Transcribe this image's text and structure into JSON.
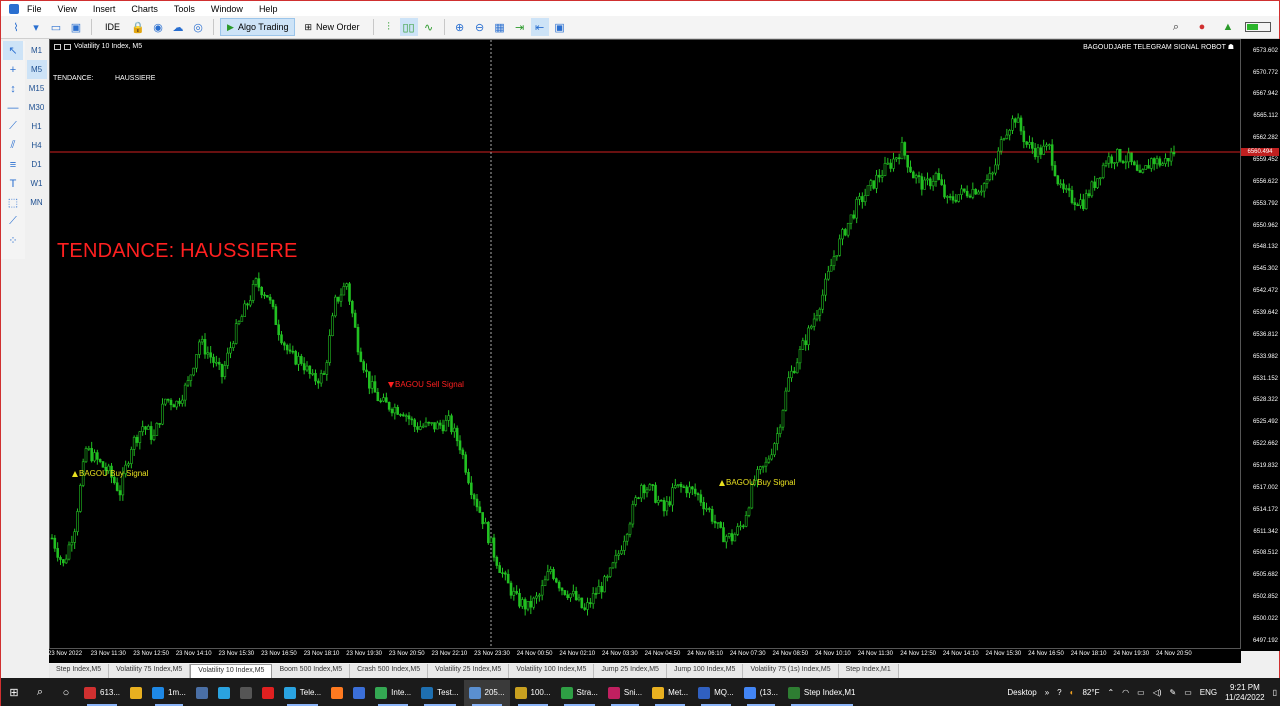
{
  "menu": [
    "File",
    "View",
    "Insert",
    "Charts",
    "Tools",
    "Window",
    "Help"
  ],
  "toolbar": {
    "ide_label": "IDE",
    "algo_trading_label": "Algo Trading",
    "new_order_label": "New Order"
  },
  "timeframes": [
    "M1",
    "M5",
    "M15",
    "M30",
    "H1",
    "H4",
    "D1",
    "W1",
    "MN"
  ],
  "active_timeframe": "M5",
  "chart": {
    "title": "Volatility 10 Index, M5",
    "robot_label": "BAGOUDJARE TELEGRAM SIGNAL ROBOT",
    "tendance_label": "TENDANCE:",
    "tendance_value": "HAUSSIERE",
    "tendance_big": "TENDANCE: HAUSSIERE",
    "buy_signal_1": "BAGOU Buy Signal",
    "sell_signal": "BAGOU Sell Signal",
    "buy_signal_2": "BAGOU Buy Signal",
    "current_price": "6560.494",
    "candle_color": "#22c022",
    "price_line_color": "#d02020"
  },
  "chart_data": {
    "type": "line",
    "title": "Volatility 10 Index, M5",
    "xlabel": "",
    "ylabel": "",
    "ylim": [
      6496,
      6575
    ],
    "y_ticks": [
      "6573.602",
      "6570.772",
      "6567.942",
      "6565.112",
      "6562.282",
      "6559.452",
      "6556.622",
      "6553.792",
      "6550.962",
      "6548.132",
      "6545.302",
      "6542.472",
      "6539.642",
      "6536.812",
      "6533.982",
      "6531.152",
      "6528.322",
      "6525.492",
      "6522.662",
      "6519.832",
      "6517.002",
      "6514.172",
      "6511.342",
      "6508.512",
      "6505.682",
      "6502.852",
      "6500.022",
      "6497.192"
    ],
    "x_ticks": [
      "23 Nov 2022",
      "23 Nov 11:30",
      "23 Nov 12:50",
      "23 Nov 14:10",
      "23 Nov 15:30",
      "23 Nov 16:50",
      "23 Nov 18:10",
      "23 Nov 19:30",
      "23 Nov 20:50",
      "23 Nov 22:10",
      "23 Nov 23:30",
      "24 Nov 00:50",
      "24 Nov 02:10",
      "24 Nov 03:30",
      "24 Nov 04:50",
      "24 Nov 06:10",
      "24 Nov 07:30",
      "24 Nov 08:50",
      "24 Nov 10:10",
      "24 Nov 11:30",
      "24 Nov 12:50",
      "24 Nov 14:10",
      "24 Nov 15:30",
      "24 Nov 16:50",
      "24 Nov 18:10",
      "24 Nov 19:30",
      "24 Nov 20:50"
    ],
    "series": [
      {
        "values": [
          6510.5,
          6507.0,
          6512.0,
          6522.0,
          6520.5,
          6519.0,
          6516.5,
          6522.5,
          6525.0,
          6523.5,
          6528.5,
          6528.0,
          6530.5,
          6536.0,
          6534.0,
          6531.5,
          6536.5,
          6540.0,
          6543.5,
          6542.0,
          6537.5,
          6534.0,
          6533.5,
          6531.0,
          6531.5,
          6541.0,
          6543.5,
          6535.5,
          6530.5,
          6528.0,
          6527.5,
          6527.0,
          6525.0,
          6525.0,
          6525.0,
          6525.5,
          6522.5,
          6517.0,
          6513.0,
          6508.5,
          6505.0,
          6502.5,
          6501.5,
          6503.0,
          6506.5,
          6504.0,
          6503.0,
          6501.0,
          6503.5,
          6505.0,
          6508.5,
          6513.0,
          6517.5,
          6516.5,
          6514.0,
          6517.0,
          6517.0,
          6516.0,
          6514.0,
          6511.0,
          6510.5,
          6512.5,
          6518.0,
          6520.0,
          6524.0,
          6531.0,
          6534.5,
          6538.0,
          6542.0,
          6547.0,
          6550.5,
          6553.5,
          6555.5,
          6557.5,
          6559.0,
          6561.0,
          6557.5,
          6556.0,
          6557.5,
          6554.0,
          6555.0,
          6555.5,
          6556.0,
          6557.5,
          6563.0,
          6565.0,
          6561.5,
          6560.5,
          6561.0,
          6555.5,
          6554.5,
          6554.0,
          6556.5,
          6559.5,
          6560.0,
          6559.5,
          6557.0,
          6559.5,
          6559.0,
          6560.5
        ]
      }
    ]
  },
  "symbol_tabs": [
    "Step Index,M5",
    "Volatility 75 Index,M5",
    "Volatility 10 Index,M5",
    "Boom 500 Index,M5",
    "Crash 500 Index,M5",
    "Volatility 25 Index,M5",
    "Volatility 100 Index,M5",
    "Jump 25 Index,M5",
    "Jump 100 Index,M5",
    "Volatility 75 (1s) Index,M5",
    "Step Index,M1"
  ],
  "active_tab": "Volatility 10 Index,M5",
  "taskbar": {
    "apps": [
      {
        "label": "613...",
        "color": "#d03030"
      },
      {
        "label": "",
        "color": "#e8b020"
      },
      {
        "label": "1m...",
        "color": "#1e88e5"
      },
      {
        "label": "",
        "color": "#4a6fa5"
      },
      {
        "label": "",
        "color": "#2aa3e0"
      },
      {
        "label": "",
        "color": "#555555"
      },
      {
        "label": "",
        "color": "#e02020"
      },
      {
        "label": "Tele...",
        "color": "#2aa3e0"
      },
      {
        "label": "",
        "color": "#ff7a20"
      },
      {
        "label": "",
        "color": "#3b6fd8"
      },
      {
        "label": "Inte...",
        "color": "#34a853"
      },
      {
        "label": "Test...",
        "color": "#1e6fb0"
      },
      {
        "label": "205...",
        "color": "#5a8fd0"
      },
      {
        "label": "100...",
        "color": "#c8a020"
      },
      {
        "label": "Stra...",
        "color": "#2e9e44"
      },
      {
        "label": "Sni...",
        "color": "#c02060"
      },
      {
        "label": "Met...",
        "color": "#e8b020"
      },
      {
        "label": "MQ...",
        "color": "#3060c0"
      },
      {
        "label": "(13...",
        "color": "#4285f4"
      },
      {
        "label": "Step Index,M1",
        "color": "#2e7d32"
      }
    ],
    "desktop_label": "Desktop",
    "temperature": "82°F",
    "language": "ENG",
    "time": "9:21 PM",
    "date": "11/24/2022"
  }
}
